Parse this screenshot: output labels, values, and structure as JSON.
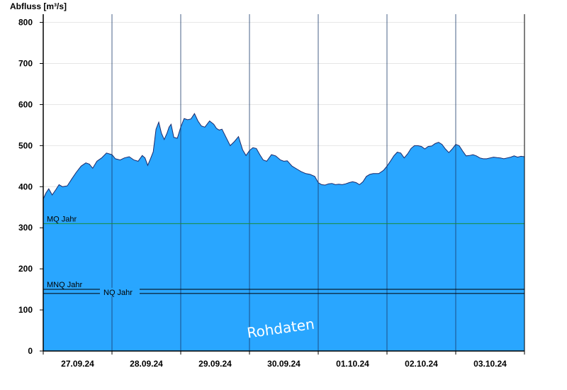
{
  "chart_data": {
    "type": "area",
    "ylabel": "Abfluss [m³/s]",
    "ylim": [
      0,
      820
    ],
    "yticks": [
      0,
      100,
      200,
      300,
      400,
      500,
      600,
      700,
      800
    ],
    "xtick_labels": [
      "27.09.24",
      "28.09.24",
      "29.09.24",
      "30.09.24",
      "01.10.24",
      "02.10.24",
      "03.10.24"
    ],
    "xrange_days": [
      0,
      7
    ],
    "grid": true,
    "fill_color": "#29a6ff",
    "line_color": "#1a2a6c",
    "series": [
      {
        "x": [
          0,
          0.04,
          0.08,
          0.13,
          0.18,
          0.23,
          0.28,
          0.35,
          0.42,
          0.48,
          0.55,
          0.62,
          0.67,
          0.72,
          0.78,
          0.85,
          0.92,
          1.0,
          1.05,
          1.12,
          1.18,
          1.25,
          1.32,
          1.38,
          1.44,
          1.48,
          1.52,
          1.56,
          1.6,
          1.64,
          1.68,
          1.72,
          1.76,
          1.8,
          1.83,
          1.86,
          1.9,
          1.95,
          2.0,
          2.05,
          2.1,
          2.15,
          2.2,
          2.25,
          2.3,
          2.35,
          2.42,
          2.48,
          2.52,
          2.56,
          2.6,
          2.66,
          2.72,
          2.78,
          2.84,
          2.9,
          2.95,
          3.0,
          3.05,
          3.1,
          3.15,
          3.2,
          3.25,
          3.32,
          3.38,
          3.45,
          3.5,
          3.55,
          3.62,
          3.7,
          3.75,
          3.82,
          3.88,
          3.95,
          4.0,
          4.05,
          4.1,
          4.15,
          4.2,
          4.25,
          4.3,
          4.35,
          4.4,
          4.45,
          4.5,
          4.55,
          4.6,
          4.65,
          4.7,
          4.75,
          4.8,
          4.88,
          4.95,
          5.0,
          5.05,
          5.1,
          5.15,
          5.2,
          5.25,
          5.3,
          5.35,
          5.4,
          5.45,
          5.5,
          5.55,
          5.6,
          5.65,
          5.7,
          5.75,
          5.8,
          5.85,
          5.9,
          5.95,
          6.0,
          6.05,
          6.1,
          6.15,
          6.2,
          6.25,
          6.3,
          6.35,
          6.4,
          6.45,
          6.5,
          6.55,
          6.6,
          6.65,
          6.7,
          6.75,
          6.8,
          6.85,
          6.9,
          6.95,
          7.0
        ],
        "y": [
          370,
          385,
          395,
          380,
          392,
          405,
          400,
          402,
          420,
          435,
          450,
          458,
          455,
          445,
          462,
          470,
          482,
          478,
          468,
          465,
          470,
          473,
          465,
          462,
          476,
          470,
          452,
          468,
          485,
          540,
          557,
          530,
          515,
          530,
          545,
          552,
          520,
          518,
          545,
          566,
          563,
          565,
          578,
          560,
          548,
          545,
          560,
          552,
          542,
          538,
          540,
          520,
          500,
          510,
          522,
          490,
          476,
          488,
          495,
          493,
          478,
          465,
          462,
          478,
          475,
          465,
          462,
          463,
          450,
          442,
          437,
          432,
          430,
          425,
          410,
          405,
          404,
          407,
          408,
          405,
          406,
          405,
          407,
          410,
          412,
          410,
          405,
          412,
          425,
          430,
          432,
          432,
          440,
          450,
          462,
          475,
          484,
          482,
          470,
          480,
          493,
          500,
          500,
          498,
          492,
          498,
          499,
          505,
          508,
          503,
          492,
          483,
          492,
          503,
          500,
          487,
          475,
          476,
          478,
          475,
          470,
          468,
          468,
          470,
          472,
          471,
          470,
          468,
          470,
          472,
          475,
          472,
          474,
          473
        ]
      }
    ],
    "reference_lines": [
      {
        "label": "MQ Jahr",
        "value": 310,
        "color": "#1a8c3a"
      },
      {
        "label": "MNQ Jahr",
        "value": 145,
        "color": "#000000"
      },
      {
        "label": "NQ Jahr",
        "value": 140,
        "color": "#000000"
      }
    ],
    "watermark": "Rohdaten"
  }
}
